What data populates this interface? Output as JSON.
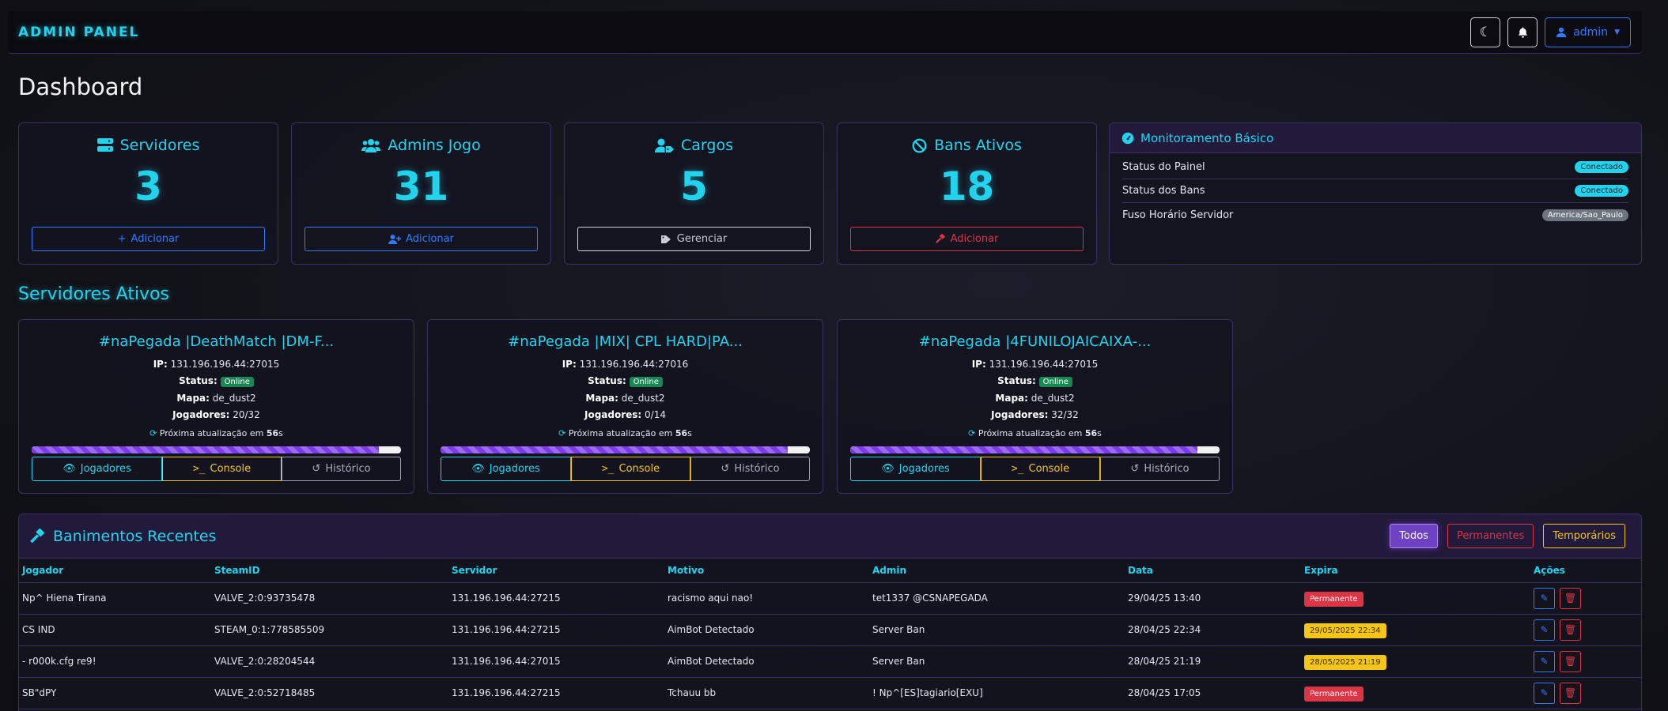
{
  "header": {
    "brand": "ADMIN PANEL",
    "user_label": "admin"
  },
  "page_title": "Dashboard",
  "stats": [
    {
      "label": "Servidores",
      "value": "3",
      "button": "Adicionar"
    },
    {
      "label": "Admins Jogo",
      "value": "31",
      "button": "Adicionar"
    },
    {
      "label": "Cargos",
      "value": "5",
      "button": "Gerenciar"
    },
    {
      "label": "Bans Ativos",
      "value": "18",
      "button": "Adicionar"
    }
  ],
  "monitor": {
    "title": "Monitoramento Básico",
    "rows": [
      {
        "label": "Status do Painel",
        "value": "Conectado"
      },
      {
        "label": "Status dos Bans",
        "value": "Conectado"
      },
      {
        "label": "Fuso Horário Servidor",
        "value": "America/Sao_Paulo"
      }
    ]
  },
  "servers_section_title": "Servidores Ativos",
  "server_labels": {
    "ip": "IP:",
    "status": "Status:",
    "map": "Mapa:",
    "players": "Jogadores:",
    "refresh_prefix": "Próxima atualização em",
    "refresh_seconds": "56",
    "refresh_suffix": "s",
    "btn_players": "Jogadores",
    "btn_console": "Console",
    "btn_history": "Histórico"
  },
  "servers": [
    {
      "name": "#naPegada |DeathMatch |DM-F...",
      "ip": "131.196.196.44:27015",
      "status": "Online",
      "map": "de_dust2",
      "players": "20/32",
      "progress": 0.94
    },
    {
      "name": "#naPegada |MIX| CPL HARD|PA...",
      "ip": "131.196.196.44:27016",
      "status": "Online",
      "map": "de_dust2",
      "players": "0/14",
      "progress": 0.94
    },
    {
      "name": "#naPegada |4FUNILOJAICAIXA-...",
      "ip": "131.196.196.44:27015",
      "status": "Online",
      "map": "de_dust2",
      "players": "32/32",
      "progress": 0.94
    }
  ],
  "bans": {
    "title": "Banimentos Recentes",
    "filters": [
      "Todos",
      "Permanentes",
      "Temporários"
    ],
    "columns": [
      "Jogador",
      "SteamID",
      "Servidor",
      "Motivo",
      "Admin",
      "Data",
      "Expira",
      "Ações"
    ],
    "rows": [
      {
        "player": "Np^ Hiena Tirana",
        "steamid": "VALVE_2:0:93735478",
        "server": "131.196.196.44:27215",
        "reason": "racismo aqui nao!",
        "admin": "tet1337 @CSNAPEGADA",
        "date": "29/04/25 13:40",
        "expires": "Permanente",
        "type": "perm"
      },
      {
        "player": "CS IND",
        "steamid": "STEAM_0:1:778585509",
        "server": "131.196.196.44:27215",
        "reason": "AimBot Detectado",
        "admin": "Server Ban",
        "date": "28/04/25 22:34",
        "expires": "29/05/2025 22:34",
        "type": "temp"
      },
      {
        "player": "- r000k.cfg re9!",
        "steamid": "VALVE_2:0:28204544",
        "server": "131.196.196.44:27015",
        "reason": "AimBot Detectado",
        "admin": "Server Ban",
        "date": "28/04/25 21:19",
        "expires": "28/05/2025 21:19",
        "type": "temp"
      },
      {
        "player": "SB\"dPY",
        "steamid": "VALVE_2:0:52718485",
        "server": "131.196.196.44:27215",
        "reason": "Tchauu bb",
        "admin": "! Np^[ES]tagiario[EXU]",
        "date": "28/04/25 17:05",
        "expires": "Permanente",
        "type": "perm"
      }
    ]
  },
  "colors": {
    "accent": "#22d3ee",
    "purple": "#7c3aed",
    "danger": "#dc3545",
    "warning": "#f5c518",
    "primary": "#2f7bff"
  }
}
